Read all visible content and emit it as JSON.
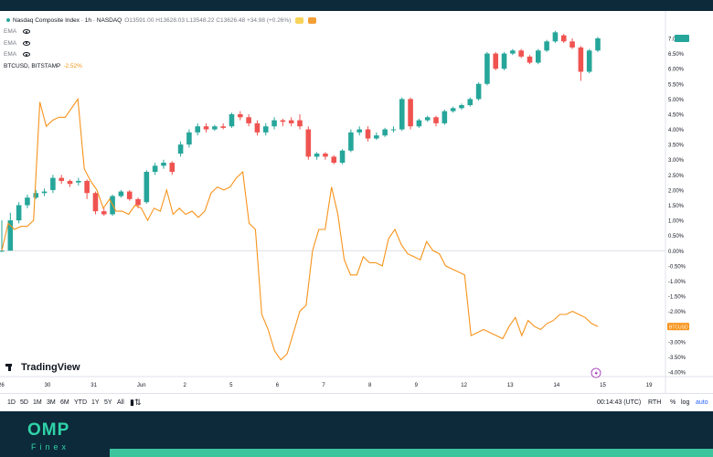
{
  "legend": {
    "main_title": "Nasdaq Composite Index · 1h · NASDAQ",
    "ohlc": "O13591.00 H13628.03 L13548.22 C13626.48 +34.98 (+0.26%)",
    "ema_labels": [
      "EMA",
      "EMA",
      "EMA"
    ],
    "compare_symbol": "BTCUSD, BITSTAMP",
    "compare_change": "-2.52%"
  },
  "logo": {
    "text": "TradingView"
  },
  "toolbar": {
    "timeframes": [
      "1D",
      "5D",
      "1M",
      "3M",
      "6M",
      "YTD",
      "1Y",
      "5Y",
      "All"
    ],
    "clock": "00:14:43 (UTC)",
    "session": "RTH",
    "percent": "%",
    "log": "log",
    "auto": "auto"
  },
  "brand": {
    "name": "OMP",
    "sub": "Finex"
  },
  "colors": {
    "up": "#26a69a",
    "down": "#ef5350",
    "compare": "#f7931a",
    "axis_text": "#131722",
    "footer": "#0d2a3a"
  },
  "chart_data": {
    "type": "candlestick+line",
    "x_tick_labels": [
      "26",
      "30",
      "31",
      "Jun",
      "2",
      "5",
      "6",
      "7",
      "8",
      "9",
      "12",
      "13",
      "14",
      "15",
      "19"
    ],
    "y_axis_unit": "%",
    "y_tick_labels": [
      "7.00%",
      "6.50%",
      "6.00%",
      "5.50%",
      "5.00%",
      "4.50%",
      "4.00%",
      "3.50%",
      "3.00%",
      "2.50%",
      "2.00%",
      "1.50%",
      "1.00%",
      "0.50%",
      "0.00%",
      "-0.50%",
      "-1.00%",
      "-1.50%",
      "-2.00%",
      "-2.50%",
      "-3.00%",
      "-3.50%",
      "-4.00%"
    ],
    "ylim": [
      -4.0,
      7.0
    ],
    "series": [
      {
        "name": "Nasdaq Composite Index",
        "kind": "candlestick",
        "last_label": "",
        "candles": [
          [
            0.0,
            0.0,
            1.0,
            -0.05
          ],
          [
            0.0,
            1.0,
            1.25,
            0.95
          ],
          [
            1.0,
            1.5,
            1.6,
            0.9
          ],
          [
            1.5,
            1.75,
            1.85,
            1.4
          ],
          [
            1.75,
            1.9,
            2.0,
            1.7
          ],
          [
            1.9,
            1.95,
            2.05,
            1.8
          ],
          [
            2.0,
            2.4,
            2.5,
            1.9
          ],
          [
            2.4,
            2.3,
            2.5,
            2.2
          ],
          [
            2.3,
            2.2,
            2.35,
            2.1
          ],
          [
            2.25,
            2.3,
            2.4,
            2.15
          ],
          [
            2.3,
            1.9,
            2.35,
            1.7
          ],
          [
            1.9,
            1.3,
            1.95,
            1.2
          ],
          [
            1.3,
            1.2,
            1.4,
            1.15
          ],
          [
            1.2,
            1.8,
            1.85,
            1.15
          ],
          [
            1.8,
            1.95,
            2.0,
            1.75
          ],
          [
            1.95,
            1.7,
            2.0,
            1.65
          ],
          [
            1.7,
            1.5,
            1.75,
            1.4
          ],
          [
            1.6,
            2.6,
            2.65,
            1.55
          ],
          [
            2.6,
            2.8,
            2.9,
            2.5
          ],
          [
            2.8,
            2.9,
            3.0,
            2.7
          ],
          [
            2.9,
            2.6,
            2.95,
            2.5
          ],
          [
            3.2,
            3.5,
            3.6,
            3.1
          ],
          [
            3.5,
            3.9,
            4.0,
            3.4
          ],
          [
            3.9,
            4.1,
            4.2,
            3.8
          ],
          [
            4.1,
            4.0,
            4.2,
            3.9
          ],
          [
            4.0,
            4.1,
            4.15,
            3.95
          ],
          [
            4.1,
            4.05,
            4.2,
            4.0
          ],
          [
            4.1,
            4.5,
            4.55,
            4.05
          ],
          [
            4.5,
            4.4,
            4.6,
            4.3
          ],
          [
            4.4,
            4.2,
            4.5,
            4.1
          ],
          [
            4.2,
            3.9,
            4.3,
            3.8
          ],
          [
            3.9,
            4.1,
            4.2,
            3.8
          ],
          [
            4.1,
            4.3,
            4.4,
            4.0
          ],
          [
            4.3,
            4.25,
            4.35,
            4.1
          ],
          [
            4.3,
            4.2,
            4.4,
            4.1
          ],
          [
            4.3,
            4.1,
            4.5,
            4.0
          ],
          [
            4.0,
            3.1,
            4.1,
            3.0
          ],
          [
            3.1,
            3.2,
            3.25,
            3.0
          ],
          [
            3.2,
            3.1,
            3.25,
            3.0
          ],
          [
            3.1,
            2.9,
            3.15,
            2.85
          ],
          [
            2.9,
            3.3,
            3.35,
            2.85
          ],
          [
            3.3,
            3.9,
            4.0,
            3.25
          ],
          [
            3.9,
            4.0,
            4.1,
            3.8
          ],
          [
            4.0,
            3.7,
            4.1,
            3.6
          ],
          [
            3.7,
            3.8,
            3.9,
            3.65
          ],
          [
            3.8,
            4.0,
            4.05,
            3.75
          ],
          [
            4.0,
            4.0,
            4.1,
            3.9
          ],
          [
            4.0,
            5.0,
            5.05,
            3.95
          ],
          [
            5.0,
            4.1,
            5.05,
            4.0
          ],
          [
            4.1,
            4.3,
            4.35,
            4.05
          ],
          [
            4.3,
            4.4,
            4.45,
            4.25
          ],
          [
            4.4,
            4.2,
            4.45,
            4.1
          ],
          [
            4.2,
            4.6,
            4.65,
            4.15
          ],
          [
            4.6,
            4.7,
            4.75,
            4.55
          ],
          [
            4.7,
            4.8,
            4.85,
            4.65
          ],
          [
            4.8,
            5.0,
            5.05,
            4.75
          ],
          [
            5.0,
            5.5,
            5.55,
            4.95
          ],
          [
            5.5,
            6.5,
            6.55,
            5.45
          ],
          [
            6.5,
            6.0,
            6.55,
            5.95
          ],
          [
            6.0,
            6.5,
            6.55,
            5.95
          ],
          [
            6.5,
            6.6,
            6.65,
            6.45
          ],
          [
            6.6,
            6.4,
            6.65,
            6.35
          ],
          [
            6.4,
            6.2,
            6.45,
            6.15
          ],
          [
            6.2,
            6.6,
            6.65,
            6.15
          ],
          [
            6.6,
            6.9,
            6.95,
            6.55
          ],
          [
            6.9,
            7.2,
            7.25,
            6.85
          ],
          [
            7.1,
            6.9,
            7.15,
            6.85
          ],
          [
            6.9,
            6.7,
            7.0,
            6.65
          ],
          [
            6.7,
            5.9,
            6.75,
            5.6
          ],
          [
            5.9,
            6.6,
            6.65,
            5.85
          ],
          [
            6.6,
            7.0,
            7.05,
            6.55
          ]
        ]
      },
      {
        "name": "BTCUSD, BITSTAMP",
        "kind": "line",
        "last_label": "",
        "values": [
          0.0,
          0.9,
          0.7,
          0.8,
          0.8,
          1.0,
          4.9,
          4.1,
          4.3,
          4.4,
          4.4,
          4.7,
          5.0,
          2.7,
          2.3,
          2.0,
          1.4,
          1.7,
          1.3,
          1.3,
          1.2,
          1.5,
          1.4,
          1.0,
          1.4,
          1.3,
          2.0,
          1.2,
          1.4,
          1.2,
          1.3,
          1.1,
          1.3,
          1.9,
          2.1,
          2.0,
          2.1,
          2.4,
          2.6,
          0.9,
          0.7,
          -2.1,
          -2.6,
          -3.3,
          -3.6,
          -3.4,
          -2.7,
          -2.0,
          -1.8,
          0.0,
          0.7,
          0.7,
          2.1,
          1.2,
          -0.3,
          -0.8,
          -0.8,
          -0.2,
          -0.4,
          -0.4,
          -0.5,
          0.4,
          0.7,
          0.2,
          -0.1,
          -0.2,
          -0.3,
          0.3,
          0.0,
          -0.1,
          -0.5,
          -0.6,
          -0.7,
          -0.8,
          -2.8,
          -2.7,
          -2.6,
          -2.7,
          -2.8,
          -2.9,
          -2.5,
          -2.2,
          -2.8,
          -2.3,
          -2.5,
          -2.6,
          -2.4,
          -2.3,
          -2.1,
          -2.1,
          -2.0,
          -2.1,
          -2.2,
          -2.4,
          -2.5
        ]
      }
    ],
    "last_value_labels": {
      "main": "",
      "compare": "BTCUSD"
    },
    "grid": false,
    "zero_line": true,
    "legend_placement": "top-left"
  }
}
